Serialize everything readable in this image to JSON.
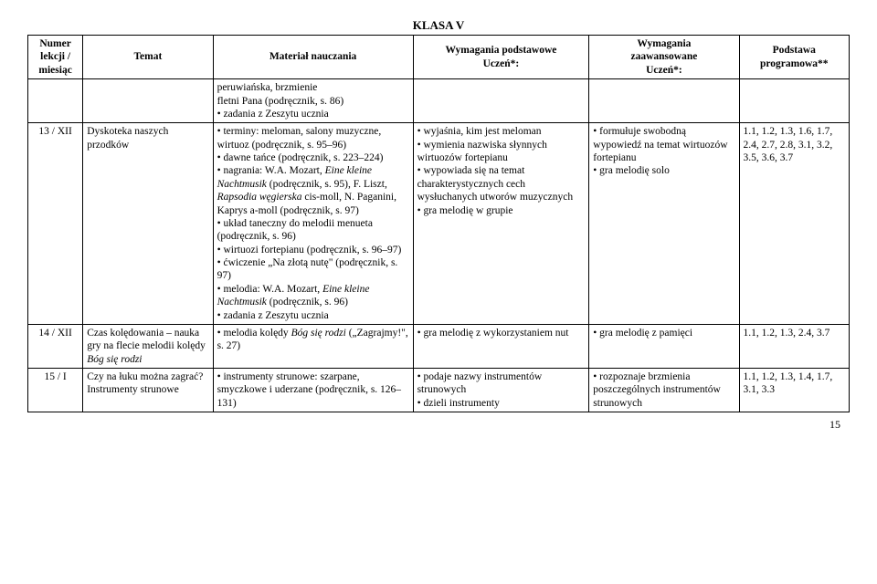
{
  "title": "KLASA V",
  "headers": {
    "num": "Numer lekcji / miesiąc",
    "temat": "Temat",
    "material": "Materiał nauczania",
    "podstawowe": "Wymagania podstawowe\nUczeń*:",
    "zaawansowane": "Wymagania\nzaawansowane\nUczeń*:",
    "programowa": "Podstawa\nprogramowa**"
  },
  "rows": [
    {
      "num": "",
      "temat": "",
      "material": "peruwiańska, brzmienie\nfletni Pana (podręcznik, s. 86)\n• zadania z Zeszytu ucznia",
      "podstawowe": "",
      "zaawansowane": "",
      "programowa": ""
    },
    {
      "num": "13 / XII",
      "temat": "Dyskoteka naszych przodków",
      "material": "• terminy: meloman, salony muzyczne, wirtuoz (podręcznik, s. 95–96)\n• dawne tańce (podręcznik, s. 223–224)\n• nagrania: W.A. Mozart, Eine kleine Nachtmusik (podręcznik, s. 95), F. Liszt, Rapsodia węgierska cis-moll, N. Paganini, Kaprys a-moll (podręcznik, s. 97)\n• układ taneczny do melodii menueta (podręcznik, s. 96)\n• wirtuozi fortepianu (podręcznik, s. 96–97)\n• ćwiczenie „Na złotą nutę\" (podręcznik, s. 97)\n• melodia: W.A. Mozart, Eine kleine Nachtmusik (podręcznik, s. 96)\n• zadania z Zeszytu ucznia",
      "podstawowe": "• wyjaśnia, kim jest meloman\n• wymienia nazwiska słynnych wirtuozów fortepianu\n• wypowiada się na temat charakterystycznych cech wysłuchanych utworów muzycznych\n• gra melodię w grupie",
      "zaawansowane": "• formułuje swobodną wypowiedź na temat wirtuozów fortepianu\n• gra melodię solo",
      "programowa": "1.1, 1.2, 1.3, 1.6, 1.7, 2.4, 2.7, 2.8, 3.1, 3.2, 3.5, 3.6, 3.7"
    },
    {
      "num": "14 / XII",
      "temat": "Czas kolędowania – nauka gry na flecie melodii kolędy Bóg się rodzi",
      "material": "• melodia kolędy Bóg się rodzi („Zagrajmy!\", s. 27)",
      "podstawowe": "• gra melodię z wykorzystaniem nut",
      "zaawansowane": "• gra melodię z pamięci",
      "programowa": "1.1, 1.2, 1.3, 2.4, 3.7"
    },
    {
      "num": "15 / I",
      "temat": "Czy na łuku można zagrać? Instrumenty strunowe",
      "material": "• instrumenty strunowe: szarpane, smyczkowe i uderzane (podręcznik, s. 126–131)",
      "podstawowe": "• podaje nazwy instrumentów strunowych\n• dzieli instrumenty",
      "zaawansowane": "• rozpoznaje brzmienia poszczególnych instrumentów strunowych",
      "programowa": "1.1, 1.2, 1.3, 1.4, 1.7, 3.1, 3.3"
    }
  ],
  "pageNumber": "15"
}
